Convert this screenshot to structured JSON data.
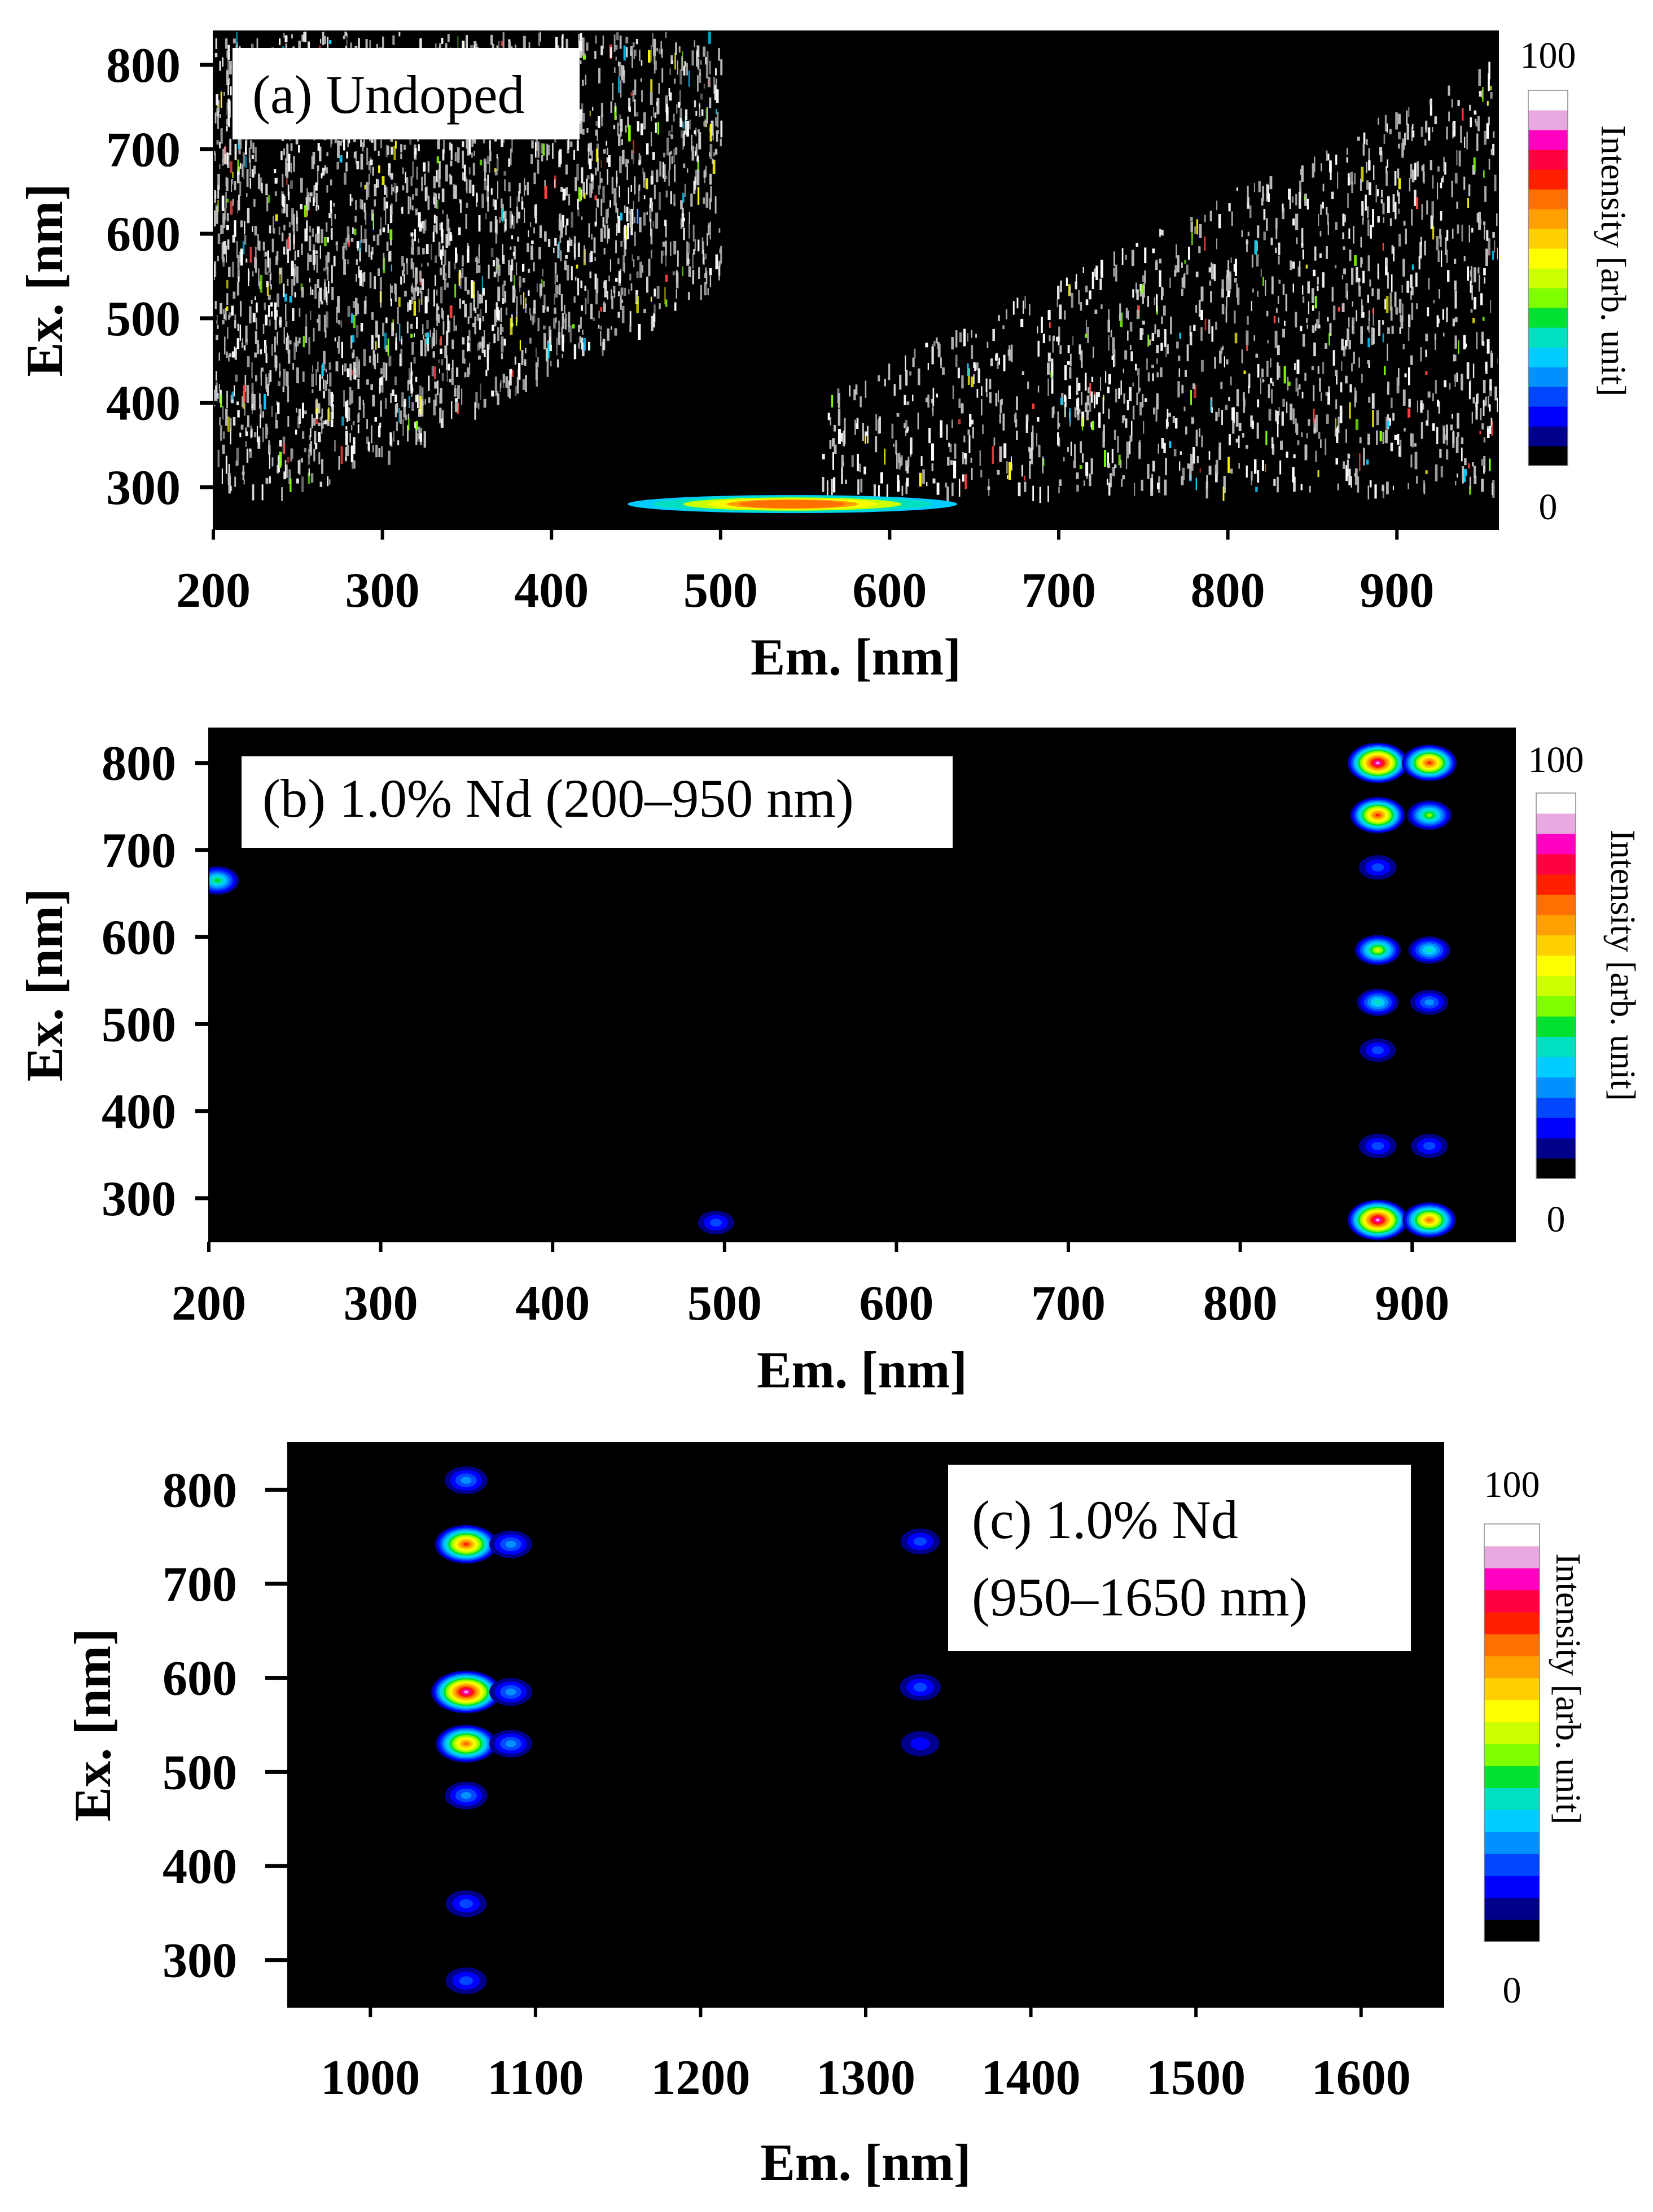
{
  "colorbar_colors": [
    "#000000",
    "#00008b",
    "#0000ff",
    "#0047ff",
    "#0090ff",
    "#00ccff",
    "#00e0c0",
    "#00e030",
    "#80ff00",
    "#ccff00",
    "#ffff00",
    "#ffd000",
    "#ffa000",
    "#ff7000",
    "#ff2000",
    "#ff0040",
    "#ff00c0",
    "#e8a8e0",
    "#ffffff"
  ],
  "chart_data": [
    {
      "type": "heatmap",
      "label": "(a) Undoped",
      "label_lines": [
        "(a) Undoped"
      ],
      "xlabel": "Em. [nm]",
      "ylabel": "Ex. [nm]",
      "xlim": [
        200,
        960
      ],
      "ylim": [
        250,
        840
      ],
      "xticks": [
        200,
        300,
        400,
        500,
        600,
        700,
        800,
        900
      ],
      "yticks": [
        300,
        400,
        500,
        600,
        700,
        800
      ],
      "colorbar": {
        "label": "Intensity [arb. unit]",
        "min": 0,
        "max": 100,
        "min_label": "0",
        "max_label": "100"
      },
      "features": [
        {
          "em": [
            445,
            640
          ],
          "ex": 280,
          "peak_intensity": 75
        },
        {
          "noise_region": "upper-left",
          "em": [
            200,
            500
          ],
          "ex": [
            300,
            840
          ]
        },
        {
          "noise_region": "right",
          "em": [
            560,
            960
          ],
          "ex": [
            300,
            840
          ]
        }
      ]
    },
    {
      "type": "heatmap",
      "label": "(b) 1.0% Nd (200–950 nm)",
      "label_lines": [
        "(b) 1.0% Nd (200–950 nm)"
      ],
      "xlabel": "Em. [nm]",
      "ylabel": "Ex. [nm]",
      "xlim": [
        200,
        960
      ],
      "ylim": [
        250,
        840
      ],
      "xticks": [
        200,
        300,
        400,
        500,
        600,
        700,
        800,
        900
      ],
      "yticks": [
        300,
        400,
        500,
        600,
        700,
        800
      ],
      "colorbar": {
        "label": "Intensity [arb. unit]",
        "min": 0,
        "max": 100,
        "min_label": "0",
        "max_label": "100"
      },
      "peaks": [
        {
          "em": 880,
          "ex": 800,
          "intensity": 100
        },
        {
          "em": 910,
          "ex": 800,
          "intensity": 80
        },
        {
          "em": 880,
          "ex": 740,
          "intensity": 80
        },
        {
          "em": 910,
          "ex": 740,
          "intensity": 45
        },
        {
          "em": 880,
          "ex": 680,
          "intensity": 20
        },
        {
          "em": 880,
          "ex": 585,
          "intensity": 50
        },
        {
          "em": 910,
          "ex": 585,
          "intensity": 35
        },
        {
          "em": 880,
          "ex": 525,
          "intensity": 35
        },
        {
          "em": 910,
          "ex": 525,
          "intensity": 22
        },
        {
          "em": 880,
          "ex": 470,
          "intensity": 15
        },
        {
          "em": 880,
          "ex": 360,
          "intensity": 20
        },
        {
          "em": 910,
          "ex": 360,
          "intensity": 18
        },
        {
          "em": 880,
          "ex": 275,
          "intensity": 100
        },
        {
          "em": 910,
          "ex": 275,
          "intensity": 75
        },
        {
          "em": 495,
          "ex": 272,
          "intensity": 15
        },
        {
          "em": 205,
          "ex": 665,
          "intensity": 40
        }
      ]
    },
    {
      "type": "heatmap",
      "label": "(c) 1.0% Nd (950–1650 nm)",
      "label_lines": [
        "(c) 1.0% Nd",
        "(950–1650 nm)"
      ],
      "xlabel": "Em. [nm]",
      "ylabel": "Ex. [nm]",
      "xlim": [
        950,
        1650
      ],
      "ylim": [
        250,
        850
      ],
      "xticks": [
        1000,
        1100,
        1200,
        1300,
        1400,
        1500,
        1600
      ],
      "yticks": [
        300,
        400,
        500,
        600,
        700,
        800
      ],
      "colorbar": {
        "label": "Intensity [arb. unit]",
        "min": 0,
        "max": 100,
        "min_label": "0",
        "max_label": "100"
      },
      "peaks": [
        {
          "em": 1058,
          "ex": 810,
          "intensity": 25
        },
        {
          "em": 1058,
          "ex": 742,
          "intensity": 80
        },
        {
          "em": 1085,
          "ex": 742,
          "intensity": 25
        },
        {
          "em": 1058,
          "ex": 585,
          "intensity": 100
        },
        {
          "em": 1085,
          "ex": 585,
          "intensity": 25
        },
        {
          "em": 1058,
          "ex": 530,
          "intensity": 75
        },
        {
          "em": 1085,
          "ex": 530,
          "intensity": 25
        },
        {
          "em": 1058,
          "ex": 475,
          "intensity": 25
        },
        {
          "em": 1058,
          "ex": 360,
          "intensity": 20
        },
        {
          "em": 1058,
          "ex": 278,
          "intensity": 20
        },
        {
          "em": 1333,
          "ex": 745,
          "intensity": 15
        },
        {
          "em": 1333,
          "ex": 590,
          "intensity": 20
        },
        {
          "em": 1333,
          "ex": 530,
          "intensity": 12
        }
      ]
    }
  ]
}
